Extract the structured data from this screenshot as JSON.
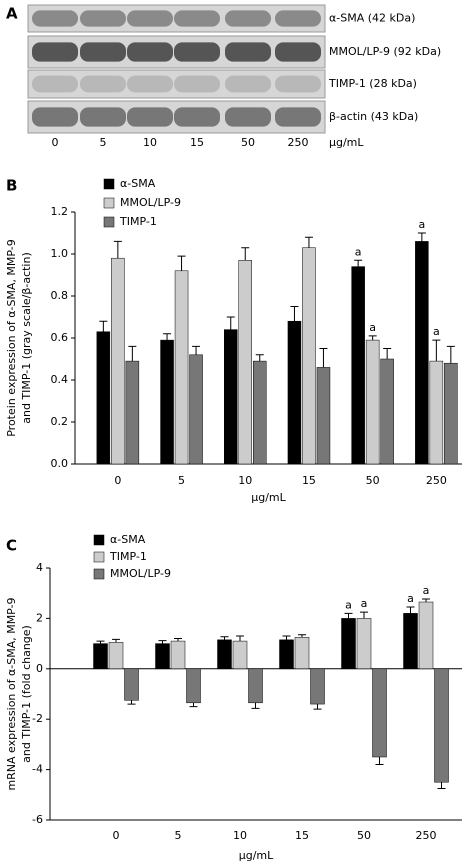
{
  "blot": {
    "panel": "A",
    "bands": [
      "α-SMA (42 kDa)",
      "MMOL/LP-9 (92 kDa)",
      "TIMP-1 (28 kDa)",
      "β-actin (43 kDa)"
    ],
    "categories": [
      "0",
      "5",
      "10",
      "15",
      "50",
      "250"
    ],
    "unit": "μg/mL"
  },
  "chart_data": [
    {
      "type": "bar",
      "panel": "B",
      "ylabel": [
        "Protein expression of α-SMA, MMP-9",
        "and TIMP-1 (gray scale/β-actin)"
      ],
      "xlabel": "μg/mL",
      "categories": [
        "0",
        "5",
        "10",
        "15",
        "50",
        "250"
      ],
      "series": [
        {
          "name": "α-SMA",
          "color": "#000000",
          "values": [
            0.63,
            0.59,
            0.64,
            0.68,
            0.94,
            1.06
          ],
          "errors": [
            0.05,
            0.03,
            0.06,
            0.07,
            0.03,
            0.04
          ],
          "annotations": [
            null,
            null,
            null,
            null,
            "a",
            "a"
          ]
        },
        {
          "name": "MMOL/LP-9",
          "color": "#cccccc",
          "values": [
            0.98,
            0.92,
            0.97,
            1.03,
            0.59,
            0.49
          ],
          "errors": [
            0.08,
            0.07,
            0.06,
            0.05,
            0.02,
            0.1
          ],
          "annotations": [
            null,
            null,
            null,
            null,
            "a",
            "a"
          ]
        },
        {
          "name": "TIMP-1",
          "color": "#777777",
          "values": [
            0.49,
            0.52,
            0.49,
            0.46,
            0.5,
            0.48
          ],
          "errors": [
            0.07,
            0.04,
            0.03,
            0.09,
            0.05,
            0.08
          ],
          "annotations": [
            null,
            null,
            null,
            null,
            null,
            null
          ]
        }
      ],
      "ylim": [
        0,
        1.2
      ],
      "yticks": [
        {
          "value": 0,
          "label": "0.0"
        },
        0.2,
        0.4,
        0.6,
        0.8,
        {
          "value": 1,
          "label": "1.0"
        },
        1.2
      ]
    },
    {
      "type": "bar",
      "panel": "C",
      "ylabel": [
        "mRNA expression of α-SMA, MMP-9",
        "and TIMP-1 (fold change)"
      ],
      "xlabel": "μg/mL",
      "categories": [
        "0",
        "5",
        "10",
        "15",
        "50",
        "250"
      ],
      "series": [
        {
          "name": "α-SMA",
          "color": "#000000",
          "values": [
            1.0,
            1.0,
            1.15,
            1.15,
            2.0,
            2.2
          ],
          "errors": [
            0.1,
            0.12,
            0.12,
            0.15,
            0.2,
            0.25
          ],
          "annotations": [
            null,
            null,
            null,
            null,
            "a",
            "a"
          ]
        },
        {
          "name": "TIMP-1",
          "color": "#cccccc",
          "values": [
            1.05,
            1.1,
            1.1,
            1.25,
            2.0,
            2.65
          ],
          "errors": [
            0.12,
            0.1,
            0.2,
            0.1,
            0.25,
            0.12
          ],
          "annotations": [
            null,
            null,
            null,
            null,
            "a",
            "a"
          ]
        },
        {
          "name": "MMOL/LP-9",
          "color": "#777777",
          "values": [
            -1.25,
            -1.35,
            -1.35,
            -1.4,
            -3.5,
            -4.5
          ],
          "errors": [
            0.15,
            0.15,
            0.22,
            0.2,
            0.3,
            0.25
          ],
          "annotations": [
            null,
            null,
            null,
            null,
            null,
            null
          ]
        }
      ],
      "ylim": [
        -6,
        4
      ],
      "yticks": [
        -6,
        -4,
        -2,
        0,
        2,
        4
      ]
    }
  ]
}
